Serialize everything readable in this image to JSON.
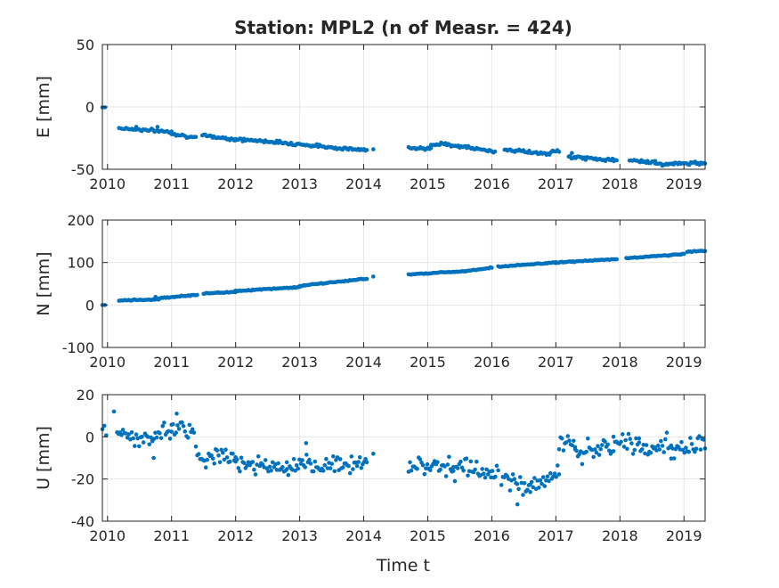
{
  "figure": {
    "title": "Station: MPL2 (n of Measr. = 424)",
    "xlabel": "Time t"
  },
  "colors": {
    "marker": "#0072bd",
    "grid": "#e6e6e6",
    "axis": "#262626"
  },
  "chart_data": [
    {
      "type": "scatter",
      "name": "E",
      "ylabel": "E [mm]",
      "xlim": [
        2009.92,
        2019.33
      ],
      "ylim": [
        -50,
        50
      ],
      "xticks": [
        2010,
        2011,
        2012,
        2013,
        2014,
        2015,
        2016,
        2017,
        2018,
        2019
      ],
      "xtick_labels": [
        "2010",
        "2011",
        "2012",
        "2013",
        "2014",
        "2015",
        "2016",
        "2017",
        "2018",
        "2019"
      ],
      "yticks": [
        -50,
        0,
        50
      ],
      "ytick_labels": [
        "-50",
        "0",
        "50"
      ],
      "grid": true,
      "segments": [
        {
          "x": [
            2009.92,
            2009.96
          ],
          "y": [
            0,
            0
          ]
        },
        {
          "x": [
            2010.18,
            2011.0
          ],
          "y": [
            -17,
            -20
          ]
        },
        {
          "x": [
            2011.0,
            2011.38
          ],
          "y": [
            -21,
            -25
          ]
        },
        {
          "x": [
            2011.48,
            2012.0
          ],
          "y": [
            -23,
            -26
          ]
        },
        {
          "x": [
            2012.0,
            2012.6
          ],
          "y": [
            -26,
            -28
          ]
        },
        {
          "x": [
            2012.6,
            2013.2
          ],
          "y": [
            -28,
            -31
          ]
        },
        {
          "x": [
            2013.2,
            2014.05
          ],
          "y": [
            -31,
            -35
          ]
        },
        {
          "x": [
            2014.7,
            2015.05
          ],
          "y": [
            -32,
            -34
          ]
        },
        {
          "x": [
            2015.05,
            2015.3
          ],
          "y": [
            -31,
            -29
          ]
        },
        {
          "x": [
            2015.3,
            2016.05
          ],
          "y": [
            -30,
            -36
          ]
        },
        {
          "x": [
            2016.2,
            2016.9
          ],
          "y": [
            -34,
            -38
          ]
        },
        {
          "x": [
            2016.9,
            2017.05
          ],
          "y": [
            -37,
            -35
          ]
        },
        {
          "x": [
            2017.2,
            2017.95
          ],
          "y": [
            -40,
            -43
          ]
        },
        {
          "x": [
            2018.15,
            2018.55
          ],
          "y": [
            -43,
            -44
          ]
        },
        {
          "x": [
            2018.55,
            2019.33
          ],
          "y": [
            -46,
            -45
          ]
        }
      ],
      "points": [
        {
          "x": 2014.15,
          "y": -34
        },
        {
          "x": 2017.25,
          "y": -37
        },
        {
          "x": 2010.45,
          "y": -16
        },
        {
          "x": 2010.78,
          "y": -16
        }
      ]
    },
    {
      "type": "scatter",
      "name": "N",
      "ylabel": "N [mm]",
      "xlim": [
        2009.92,
        2019.33
      ],
      "ylim": [
        -100,
        200
      ],
      "xticks": [
        2010,
        2011,
        2012,
        2013,
        2014,
        2015,
        2016,
        2017,
        2018,
        2019
      ],
      "xtick_labels": [
        "2010",
        "2011",
        "2012",
        "2013",
        "2014",
        "2015",
        "2016",
        "2017",
        "2018",
        "2019"
      ],
      "yticks": [
        -100,
        0,
        100,
        200
      ],
      "ytick_labels": [
        "-100",
        "0",
        "100",
        "200"
      ],
      "grid": true,
      "segments": [
        {
          "x": [
            2009.92,
            2009.96
          ],
          "y": [
            0,
            0
          ]
        },
        {
          "x": [
            2010.18,
            2010.8
          ],
          "y": [
            11,
            13
          ]
        },
        {
          "x": [
            2010.8,
            2011.4
          ],
          "y": [
            16,
            24
          ]
        },
        {
          "x": [
            2011.5,
            2012.0
          ],
          "y": [
            27,
            31
          ]
        },
        {
          "x": [
            2012.0,
            2013.0
          ],
          "y": [
            33,
            42
          ]
        },
        {
          "x": [
            2013.0,
            2014.05
          ],
          "y": [
            45,
            62
          ]
        },
        {
          "x": [
            2014.7,
            2015.6
          ],
          "y": [
            72,
            80
          ]
        },
        {
          "x": [
            2015.6,
            2016.0
          ],
          "y": [
            80,
            88
          ]
        },
        {
          "x": [
            2016.1,
            2017.0
          ],
          "y": [
            90,
            100
          ]
        },
        {
          "x": [
            2017.0,
            2017.95
          ],
          "y": [
            100,
            108
          ]
        },
        {
          "x": [
            2018.1,
            2019.0
          ],
          "y": [
            110,
            120
          ]
        },
        {
          "x": [
            2019.05,
            2019.33
          ],
          "y": [
            125,
            128
          ]
        }
      ],
      "points": [
        {
          "x": 2014.15,
          "y": 67
        },
        {
          "x": 2010.75,
          "y": 19
        }
      ]
    },
    {
      "type": "scatter",
      "name": "U",
      "ylabel": "U [mm]",
      "xlim": [
        2009.92,
        2019.33
      ],
      "ylim": [
        -40,
        20
      ],
      "xticks": [
        2010,
        2011,
        2012,
        2013,
        2014,
        2015,
        2016,
        2017,
        2018,
        2019
      ],
      "xtick_labels": [
        "2010",
        "2011",
        "2012",
        "2013",
        "2014",
        "2015",
        "2016",
        "2017",
        "2018",
        "2019"
      ],
      "yticks": [
        -40,
        -20,
        0,
        20
      ],
      "ytick_labels": [
        "-40",
        "-20",
        "0",
        "20"
      ],
      "grid": true,
      "noise": 3.8,
      "segments": [
        {
          "x": [
            2009.92,
            2009.98
          ],
          "y": [
            3,
            3
          ]
        },
        {
          "x": [
            2010.15,
            2010.7
          ],
          "y": [
            1,
            -2
          ]
        },
        {
          "x": [
            2010.7,
            2011.0
          ],
          "y": [
            0,
            4
          ]
        },
        {
          "x": [
            2011.0,
            2011.35
          ],
          "y": [
            5,
            3
          ]
        },
        {
          "x": [
            2011.38,
            2012.0
          ],
          "y": [
            -9,
            -10
          ]
        },
        {
          "x": [
            2012.0,
            2012.8
          ],
          "y": [
            -11,
            -16
          ]
        },
        {
          "x": [
            2012.8,
            2014.05
          ],
          "y": [
            -15,
            -12
          ]
        },
        {
          "x": [
            2014.7,
            2015.4
          ],
          "y": [
            -13,
            -14
          ]
        },
        {
          "x": [
            2015.4,
            2016.1
          ],
          "y": [
            -15,
            -17
          ]
        },
        {
          "x": [
            2016.15,
            2016.6
          ],
          "y": [
            -20,
            -24
          ]
        },
        {
          "x": [
            2016.6,
            2017.05
          ],
          "y": [
            -23,
            -17
          ]
        },
        {
          "x": [
            2017.05,
            2017.3
          ],
          "y": [
            -1,
            -5
          ]
        },
        {
          "x": [
            2017.3,
            2017.9
          ],
          "y": [
            -8,
            -5
          ]
        },
        {
          "x": [
            2017.9,
            2018.3
          ],
          "y": [
            -3,
            -3
          ]
        },
        {
          "x": [
            2018.3,
            2018.8
          ],
          "y": [
            -6,
            -3
          ]
        },
        {
          "x": [
            2018.8,
            2019.33
          ],
          "y": [
            -7,
            -4
          ]
        }
      ],
      "points": [
        {
          "x": 2010.1,
          "y": 12
        },
        {
          "x": 2011.08,
          "y": 11
        },
        {
          "x": 2013.1,
          "y": -3
        },
        {
          "x": 2014.15,
          "y": -8
        },
        {
          "x": 2016.4,
          "y": -32
        },
        {
          "x": 2010.72,
          "y": -10
        }
      ]
    }
  ]
}
